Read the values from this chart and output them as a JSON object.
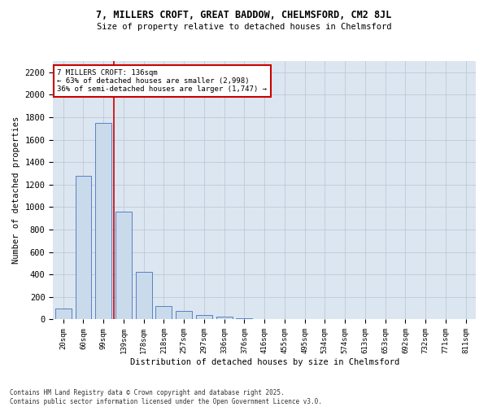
{
  "title1": "7, MILLERS CROFT, GREAT BADDOW, CHELMSFORD, CM2 8JL",
  "title2": "Size of property relative to detached houses in Chelmsford",
  "xlabel": "Distribution of detached houses by size in Chelmsford",
  "ylabel": "Number of detached properties",
  "categories": [
    "20sqm",
    "60sqm",
    "99sqm",
    "139sqm",
    "178sqm",
    "218sqm",
    "257sqm",
    "297sqm",
    "336sqm",
    "376sqm",
    "416sqm",
    "455sqm",
    "495sqm",
    "534sqm",
    "574sqm",
    "613sqm",
    "653sqm",
    "692sqm",
    "732sqm",
    "771sqm",
    "811sqm"
  ],
  "bar_heights": [
    100,
    1280,
    1750,
    960,
    420,
    120,
    75,
    40,
    22,
    12,
    0,
    0,
    0,
    0,
    0,
    0,
    0,
    0,
    0,
    0,
    0
  ],
  "bar_color": "#c9daea",
  "bar_edge_color": "#4472c4",
  "grid_color": "#c0c8d8",
  "background_color": "#dce6f0",
  "vline_x": 2.5,
  "vline_color": "#cc0000",
  "annotation_title": "7 MILLERS CROFT: 136sqm",
  "annotation_line1": "← 63% of detached houses are smaller (2,998)",
  "annotation_line2": "36% of semi-detached houses are larger (1,747) →",
  "annotation_box_color": "#cc0000",
  "ylim": [
    0,
    2300
  ],
  "yticks": [
    0,
    200,
    400,
    600,
    800,
    1000,
    1200,
    1400,
    1600,
    1800,
    2000,
    2200
  ],
  "footer1": "Contains HM Land Registry data © Crown copyright and database right 2025.",
  "footer2": "Contains public sector information licensed under the Open Government Licence v3.0."
}
